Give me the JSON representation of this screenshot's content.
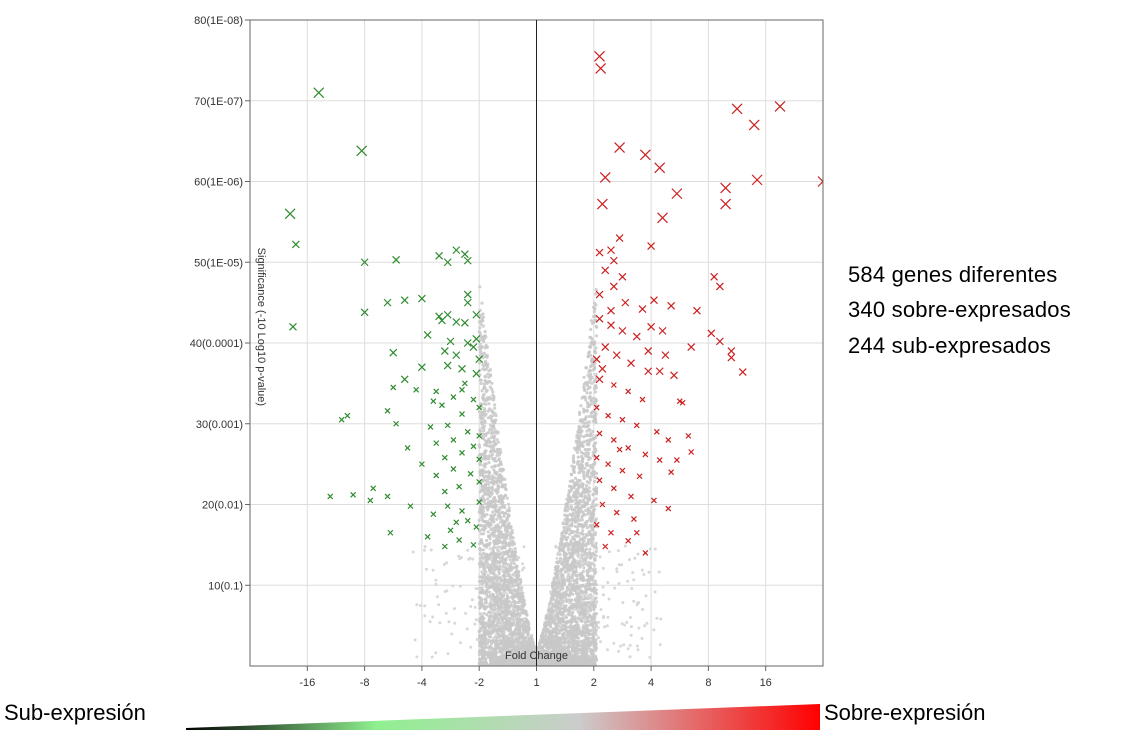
{
  "summary": {
    "total": "584 genes diferentes",
    "up": "340 sobre-expresados",
    "down": "244 sub-expresados"
  },
  "legend": {
    "left_label": "Sub-expresión",
    "right_label": "Sobre-expresión",
    "gradient_colors": [
      "#000000",
      "#8ff08f",
      "#cccccc",
      "#ff0000"
    ]
  },
  "colors": {
    "down": "#2e8b2e",
    "up": "#cc1f1f",
    "neutral": "#c8c8c8",
    "grid": "#dddddd",
    "axis": "#666666"
  },
  "chart_data": {
    "type": "scatter",
    "title": "",
    "xlabel": "Fold Change",
    "ylabel": "Significance (-10 Log10 p-value)",
    "x_scale": "log2 fold change (symmetric)",
    "x_ticks": [
      "-16",
      "-8",
      "-4",
      "-2",
      "1",
      "2",
      "4",
      "8",
      "16"
    ],
    "x_tick_values": [
      -4,
      -3,
      -2,
      -1,
      0,
      1,
      2,
      3,
      4
    ],
    "xlim": [
      -5,
      5
    ],
    "y_ticks": [
      "10(0.1)",
      "20(0.01)",
      "30(0.001)",
      "40(0.0001)",
      "50(1E-05)",
      "60(1E-06)",
      "70(1E-07)",
      "80(1E-08)"
    ],
    "y_tick_values": [
      10,
      20,
      30,
      40,
      50,
      60,
      70,
      80
    ],
    "ylim": [
      0,
      80
    ],
    "grid": true,
    "series": [
      {
        "key": "down",
        "points": [
          [
            -3.8,
            71.0
          ],
          [
            -3.05,
            63.8
          ],
          [
            -4.3,
            56.0
          ],
          [
            -4.2,
            52.2
          ],
          [
            -3.0,
            50.0
          ],
          [
            -2.45,
            50.3
          ],
          [
            -1.7,
            50.8
          ],
          [
            -1.4,
            51.5
          ],
          [
            -1.25,
            51.0
          ],
          [
            -1.2,
            50.2
          ],
          [
            -1.55,
            50.0
          ],
          [
            -2.6,
            45.0
          ],
          [
            -2.3,
            45.3
          ],
          [
            -2.0,
            45.5
          ],
          [
            -1.2,
            46.0
          ],
          [
            -4.25,
            42.0
          ],
          [
            -3.0,
            43.8
          ],
          [
            -1.7,
            43.3
          ],
          [
            -1.55,
            43.5
          ],
          [
            -1.2,
            45.0
          ],
          [
            -1.05,
            43.5
          ],
          [
            -1.25,
            42.5
          ],
          [
            -1.65,
            42.8
          ],
          [
            -1.4,
            42.6
          ],
          [
            -1.05,
            40.5
          ],
          [
            -1.2,
            40.0
          ],
          [
            -1.1,
            39.5
          ],
          [
            -1.4,
            38.5
          ],
          [
            -1.6,
            39.0
          ],
          [
            -2.5,
            38.8
          ],
          [
            -2.0,
            37.0
          ],
          [
            -1.55,
            37.2
          ],
          [
            -1.05,
            36.2
          ],
          [
            -1.3,
            36.8
          ],
          [
            -2.3,
            35.5
          ],
          [
            -2.5,
            34.5
          ],
          [
            -2.1,
            34.2
          ],
          [
            -1.75,
            34.0
          ],
          [
            -1.3,
            34.2
          ],
          [
            -1.1,
            33.0
          ],
          [
            -1.45,
            33.3
          ],
          [
            -1.65,
            32.3
          ],
          [
            -1.0,
            32.0
          ],
          [
            -1.3,
            31.2
          ],
          [
            -2.6,
            31.6
          ],
          [
            -3.3,
            31.0
          ],
          [
            -2.45,
            30.0
          ],
          [
            -1.85,
            29.6
          ],
          [
            -1.55,
            29.8
          ],
          [
            -1.2,
            29.0
          ],
          [
            -1.0,
            28.5
          ],
          [
            -1.45,
            28.0
          ],
          [
            -1.75,
            27.6
          ],
          [
            -2.25,
            27.0
          ],
          [
            -1.3,
            26.4
          ],
          [
            -1.0,
            25.6
          ],
          [
            -1.6,
            25.8
          ],
          [
            -2.0,
            25.0
          ],
          [
            -1.45,
            24.4
          ],
          [
            -1.15,
            23.8
          ],
          [
            -1.75,
            23.6
          ],
          [
            -1.0,
            22.8
          ],
          [
            -2.85,
            22.0
          ],
          [
            -1.35,
            22.2
          ],
          [
            -1.6,
            21.6
          ],
          [
            -3.2,
            21.2
          ],
          [
            -2.6,
            21.0
          ],
          [
            -2.9,
            20.5
          ],
          [
            -2.2,
            19.8
          ],
          [
            -1.0,
            20.3
          ],
          [
            -1.3,
            19.2
          ],
          [
            -1.55,
            19.8
          ],
          [
            -1.8,
            18.8
          ],
          [
            -1.2,
            18.0
          ],
          [
            -1.05,
            17.2
          ],
          [
            -1.5,
            16.8
          ],
          [
            -1.9,
            16.0
          ],
          [
            -2.55,
            16.5
          ],
          [
            -1.35,
            15.6
          ],
          [
            -1.1,
            15.0
          ],
          [
            -1.6,
            14.8
          ],
          [
            -3.6,
            21.0
          ],
          [
            -3.4,
            30.5
          ],
          [
            -1.9,
            41.0
          ],
          [
            -1.5,
            40.2
          ],
          [
            -1.0,
            38.0
          ],
          [
            -1.25,
            35.0
          ],
          [
            -1.8,
            32.8
          ],
          [
            -1.1,
            27.2
          ],
          [
            -1.4,
            17.8
          ]
        ]
      },
      {
        "key": "up",
        "points": [
          [
            1.1,
            75.5
          ],
          [
            1.12,
            74.0
          ],
          [
            1.45,
            64.2
          ],
          [
            1.9,
            63.3
          ],
          [
            2.15,
            61.7
          ],
          [
            3.5,
            69.0
          ],
          [
            3.8,
            67.0
          ],
          [
            4.25,
            69.3
          ],
          [
            5.0,
            60.0
          ],
          [
            3.85,
            60.2
          ],
          [
            3.3,
            59.2
          ],
          [
            3.3,
            57.2
          ],
          [
            2.45,
            58.5
          ],
          [
            2.2,
            55.5
          ],
          [
            1.15,
            57.2
          ],
          [
            1.2,
            60.5
          ],
          [
            1.45,
            53.0
          ],
          [
            1.3,
            51.5
          ],
          [
            1.1,
            51.2
          ],
          [
            1.35,
            50.2
          ],
          [
            2.0,
            52.0
          ],
          [
            1.2,
            49.0
          ],
          [
            1.5,
            48.2
          ],
          [
            1.35,
            47.0
          ],
          [
            1.1,
            46.0
          ],
          [
            1.55,
            45.0
          ],
          [
            1.85,
            44.2
          ],
          [
            2.05,
            45.3
          ],
          [
            2.35,
            44.6
          ],
          [
            2.8,
            44.0
          ],
          [
            3.1,
            48.2
          ],
          [
            3.2,
            47.0
          ],
          [
            3.05,
            41.2
          ],
          [
            3.2,
            40.2
          ],
          [
            3.4,
            38.2
          ],
          [
            3.6,
            36.4
          ],
          [
            1.1,
            43.0
          ],
          [
            1.3,
            42.2
          ],
          [
            1.5,
            41.5
          ],
          [
            1.75,
            40.8
          ],
          [
            1.2,
            39.5
          ],
          [
            1.05,
            38.0
          ],
          [
            1.4,
            38.5
          ],
          [
            1.65,
            37.5
          ],
          [
            1.95,
            39.0
          ],
          [
            2.15,
            36.5
          ],
          [
            2.25,
            38.5
          ],
          [
            1.1,
            35.5
          ],
          [
            1.35,
            34.8
          ],
          [
            1.6,
            34.0
          ],
          [
            1.85,
            33.0
          ],
          [
            2.5,
            32.8
          ],
          [
            2.55,
            32.6
          ],
          [
            1.05,
            32.0
          ],
          [
            1.25,
            31.0
          ],
          [
            1.5,
            30.5
          ],
          [
            1.75,
            29.8
          ],
          [
            2.1,
            29.0
          ],
          [
            2.3,
            28.0
          ],
          [
            1.1,
            28.8
          ],
          [
            1.35,
            28.0
          ],
          [
            1.6,
            27.0
          ],
          [
            1.9,
            26.2
          ],
          [
            2.15,
            25.5
          ],
          [
            1.05,
            25.8
          ],
          [
            1.25,
            25.0
          ],
          [
            1.5,
            24.2
          ],
          [
            1.8,
            23.5
          ],
          [
            2.35,
            24.0
          ],
          [
            1.1,
            23.0
          ],
          [
            1.35,
            22.0
          ],
          [
            1.65,
            21.0
          ],
          [
            2.05,
            20.5
          ],
          [
            2.3,
            19.5
          ],
          [
            1.15,
            20.0
          ],
          [
            1.4,
            19.0
          ],
          [
            1.7,
            18.2
          ],
          [
            1.05,
            17.5
          ],
          [
            1.3,
            16.5
          ],
          [
            1.6,
            15.5
          ],
          [
            1.9,
            14.0
          ],
          [
            1.2,
            14.8
          ],
          [
            2.65,
            28.5
          ],
          [
            2.7,
            26.5
          ],
          [
            2.45,
            25.5
          ],
          [
            1.95,
            36.5
          ],
          [
            2.0,
            42.0
          ],
          [
            1.3,
            44.0
          ],
          [
            1.15,
            36.8
          ],
          [
            1.45,
            26.8
          ],
          [
            1.75,
            16.5
          ],
          [
            2.2,
            41.5
          ],
          [
            3.4,
            39.0
          ],
          [
            2.7,
            39.5
          ],
          [
            2.4,
            36.0
          ]
        ]
      }
    ]
  }
}
